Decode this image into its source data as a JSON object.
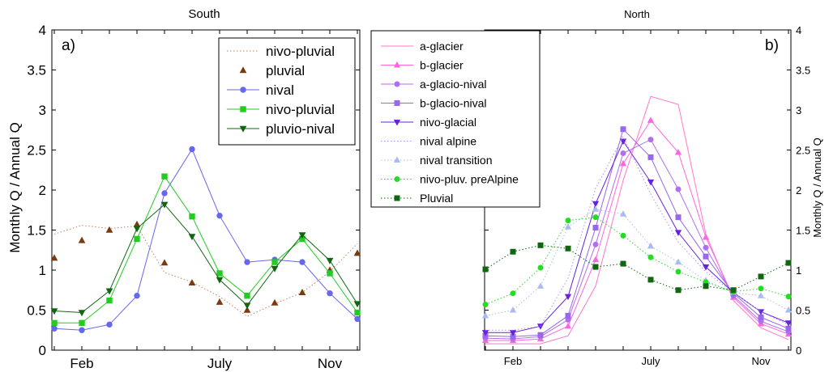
{
  "chart_data": [
    {
      "type": "line",
      "title": "South",
      "panel_label": "a)",
      "ylabel": "Monthly Q / Annual Q",
      "xlabel": "",
      "x": [
        1,
        2,
        3,
        4,
        5,
        6,
        7,
        8,
        9,
        10,
        11,
        12
      ],
      "xticks": [
        {
          "value": 2,
          "label": "Feb"
        },
        {
          "value": 7,
          "label": "July"
        },
        {
          "value": 11,
          "label": "Nov"
        }
      ],
      "yticks": [
        "0",
        "0.5",
        "1",
        "1.5",
        "2",
        "2.5",
        "3",
        "3.5",
        "4"
      ],
      "ylim": [
        0,
        4
      ],
      "legend_position": "top-right",
      "series": [
        {
          "name": "nivo-pluvial",
          "color": "#c8805a",
          "style": "dotted",
          "marker": "none",
          "values": [
            1.45,
            1.56,
            1.52,
            1.55,
            0.97,
            0.85,
            0.67,
            0.42,
            0.58,
            0.72,
            0.98,
            1.33
          ]
        },
        {
          "name": "pluvial",
          "color": "#7a3b10",
          "style": "none",
          "marker": "triangle-up",
          "values": [
            1.15,
            1.37,
            1.5,
            1.57,
            1.09,
            0.84,
            0.6,
            0.5,
            0.59,
            0.72,
            1.0,
            1.21
          ]
        },
        {
          "name": "nival",
          "color": "#6666ee",
          "style": "solid",
          "marker": "circle",
          "values": [
            0.27,
            0.25,
            0.32,
            0.68,
            1.96,
            2.51,
            1.68,
            1.1,
            1.13,
            1.1,
            0.71,
            0.39
          ]
        },
        {
          "name": "nivo-pluvial",
          "color": "#22cc22",
          "style": "solid",
          "marker": "square",
          "values": [
            0.34,
            0.34,
            0.62,
            1.39,
            2.17,
            1.67,
            0.96,
            0.68,
            1.1,
            1.39,
            0.96,
            0.47
          ]
        },
        {
          "name": "pluvio-nival",
          "color": "#116611",
          "style": "solid",
          "marker": "triangle-down",
          "values": [
            0.49,
            0.47,
            0.74,
            1.52,
            1.82,
            1.42,
            0.88,
            0.56,
            1.02,
            1.44,
            1.12,
            0.58
          ]
        }
      ]
    },
    {
      "type": "line",
      "title": "North",
      "panel_label": "b)",
      "ylabel": "Monthly Q / Annual Q",
      "xlabel": "",
      "x": [
        1,
        2,
        3,
        4,
        5,
        6,
        7,
        8,
        9,
        10,
        11,
        12
      ],
      "xticks": [
        {
          "value": 2,
          "label": "Feb"
        },
        {
          "value": 7,
          "label": "July"
        },
        {
          "value": 11,
          "label": "Nov"
        }
      ],
      "yticks": [
        "0",
        "0.5",
        "1",
        "1.5",
        "2",
        "2.5",
        "3",
        "3.5",
        "4"
      ],
      "ylim": [
        0,
        4
      ],
      "legend_position": "top-left",
      "series": [
        {
          "name": "a-glacier",
          "color": "#ff77cc",
          "style": "solid",
          "marker": "none",
          "values": [
            0.08,
            0.08,
            0.08,
            0.18,
            0.8,
            2.12,
            3.17,
            3.07,
            1.45,
            0.62,
            0.28,
            0.13
          ]
        },
        {
          "name": "b-glacier",
          "color": "#ff66dd",
          "style": "solid",
          "marker": "triangle-up",
          "values": [
            0.12,
            0.12,
            0.14,
            0.3,
            1.13,
            2.33,
            2.87,
            2.47,
            1.41,
            0.66,
            0.33,
            0.2
          ]
        },
        {
          "name": "a-glacio-nival",
          "color": "#b070ee",
          "style": "solid",
          "marker": "circle",
          "values": [
            0.15,
            0.14,
            0.17,
            0.38,
            1.32,
            2.46,
            2.63,
            2.01,
            1.28,
            0.68,
            0.36,
            0.23
          ]
        },
        {
          "name": "b-glacio-nival",
          "color": "#9966ee",
          "style": "solid",
          "marker": "square",
          "values": [
            0.18,
            0.17,
            0.19,
            0.43,
            1.53,
            2.76,
            2.41,
            1.66,
            1.17,
            0.71,
            0.41,
            0.27
          ]
        },
        {
          "name": "nivo-glacial",
          "color": "#6622dd",
          "style": "solid",
          "marker": "triangle-down",
          "values": [
            0.22,
            0.22,
            0.3,
            0.67,
            1.83,
            2.61,
            2.1,
            1.47,
            1.04,
            0.72,
            0.48,
            0.34
          ]
        },
        {
          "name": "nival alpine",
          "color": "#b090ee",
          "style": "dotted",
          "marker": "none",
          "values": [
            0.25,
            0.25,
            0.3,
            0.9,
            2.02,
            2.67,
            1.95,
            1.35,
            0.98,
            0.72,
            0.48,
            0.32
          ]
        },
        {
          "name": "nival transition",
          "color": "#aabbf0",
          "style": "dotted",
          "marker": "triangle-up",
          "values": [
            0.43,
            0.5,
            0.8,
            1.54,
            1.76,
            1.7,
            1.3,
            1.1,
            0.87,
            0.72,
            0.68,
            0.5
          ]
        },
        {
          "name": "nivo-pluv. preAlpine",
          "color": "#22dd22",
          "style": "dotted",
          "marker": "circle",
          "values": [
            0.57,
            0.71,
            1.03,
            1.62,
            1.66,
            1.43,
            1.16,
            0.98,
            0.85,
            0.73,
            0.77,
            0.67
          ]
        },
        {
          "name": "Pluvial",
          "color": "#116611",
          "style": "dotted",
          "marker": "square",
          "values": [
            1.01,
            1.23,
            1.31,
            1.27,
            1.04,
            1.08,
            0.88,
            0.75,
            0.8,
            0.75,
            0.92,
            1.09
          ]
        }
      ]
    }
  ]
}
